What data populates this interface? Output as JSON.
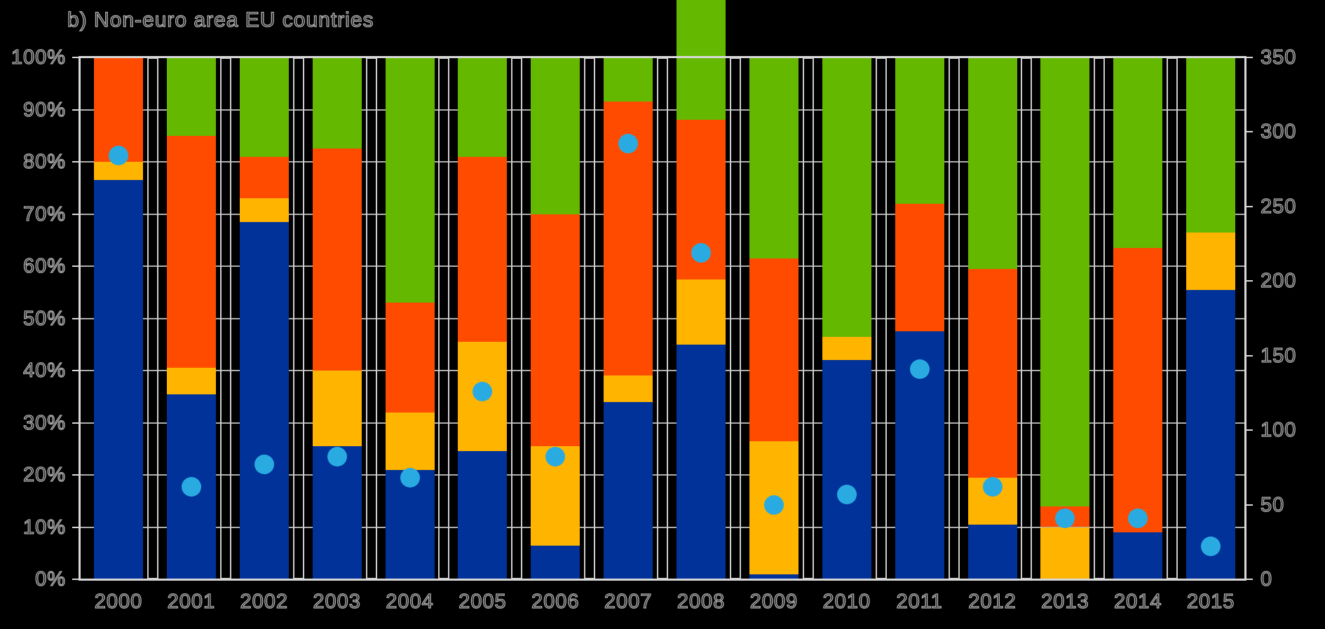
{
  "page": {
    "background": "#000000"
  },
  "title": "b) Non-euro area EU countries",
  "chart_data": {
    "type": "bar",
    "subtype": "100%-stacked-columns-with-scatter-dot-overlay",
    "title": "b) Non-euro area EU countries",
    "categories": [
      "2000",
      "2001",
      "2002",
      "2003",
      "2004",
      "2005",
      "2006",
      "2007",
      "2008",
      "2009",
      "2010",
      "2011",
      "2012",
      "2013",
      "2014",
      "2015"
    ],
    "series": [
      {
        "name": "blue-bottom-segment",
        "color": "#003299",
        "unit": "%",
        "values": [
          76.5,
          35.5,
          68.5,
          25.5,
          21,
          24.5,
          6.5,
          34,
          45,
          1,
          42,
          47.5,
          10.5,
          0,
          9,
          55.5
        ]
      },
      {
        "name": "yellow-segment",
        "color": "#FFB400",
        "unit": "%",
        "values": [
          3.5,
          5,
          4.5,
          14.5,
          11,
          21,
          19,
          5,
          12.5,
          25.5,
          4.5,
          0,
          9,
          10,
          0,
          11
        ]
      },
      {
        "name": "red-segment",
        "color": "#FF4B00",
        "unit": "%",
        "values": [
          20,
          44.5,
          8,
          42.5,
          21,
          35.5,
          44.5,
          52.5,
          30.5,
          35,
          0,
          24.5,
          40,
          4,
          54.5,
          0
        ]
      },
      {
        "name": "green-top-segment",
        "color": "#65B800",
        "unit": "%",
        "values": [
          0,
          15,
          19,
          17.5,
          47,
          19,
          30,
          8.5,
          40.5,
          38.5,
          53.5,
          28,
          40.5,
          86,
          36.5,
          33.5
        ]
      }
    ],
    "dots": {
      "name": "light-blue-dot-marker",
      "color": "#29ABE2",
      "axis": "right",
      "values": [
        284,
        62,
        77,
        82,
        68,
        126,
        82,
        292,
        219,
        50,
        57,
        141,
        62,
        41,
        41,
        22
      ]
    },
    "left_axis": {
      "min": 0,
      "max": 100,
      "step": 10,
      "ticks": [
        "0%",
        "10%",
        "20%",
        "30%",
        "40%",
        "50%",
        "60%",
        "70%",
        "80%",
        "90%",
        "100%"
      ]
    },
    "right_axis": {
      "min": 0,
      "max": 350,
      "step": 50,
      "ticks": [
        "0",
        "50",
        "100",
        "150",
        "200",
        "250",
        "300",
        "350"
      ]
    },
    "grid": "horizontal gridlines every 10%, white separator boxes between categories",
    "legend": "none visible",
    "colors": {
      "background": "#000000",
      "gridline": "#aeaeae",
      "plot_border": "#d8d8d8",
      "separator_border": "#cdcdcd",
      "label_outline": "#b2b2b2"
    }
  }
}
